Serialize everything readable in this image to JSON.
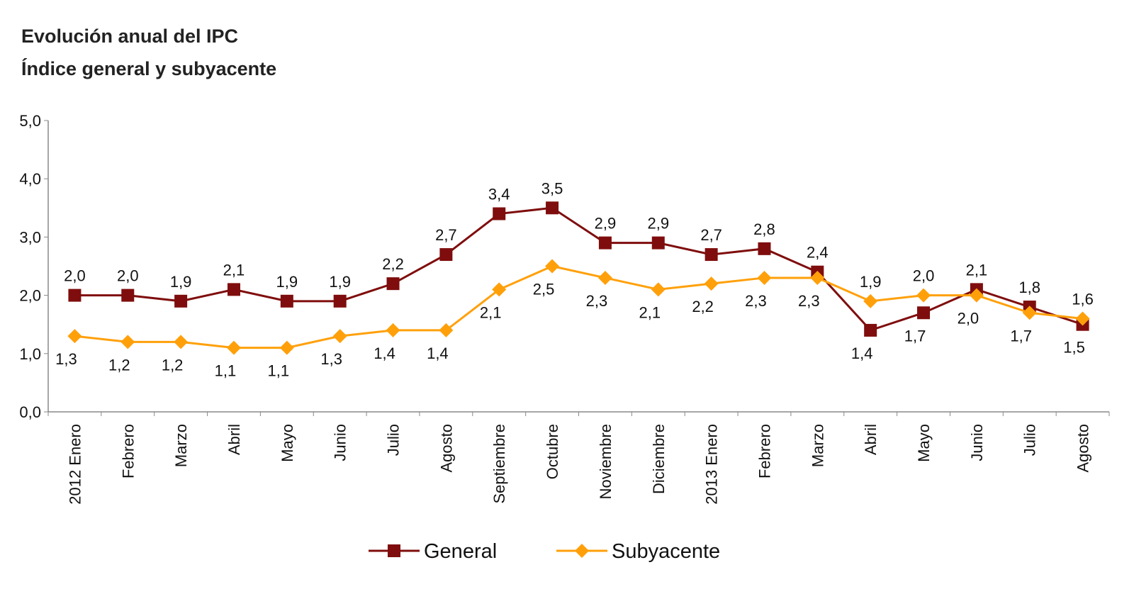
{
  "chart_data": {
    "type": "line",
    "title": "Evolución anual del IPC",
    "subtitle": "Índice general y subyacente",
    "categories": [
      "2012 Enero",
      "Febrero",
      "Marzo",
      "Abril",
      "Mayo",
      "Junio",
      "Julio",
      "Agosto",
      "Septiembre",
      "Octubre",
      "Noviembre",
      "Diciembre",
      "2013 Enero",
      "Febrero",
      "Marzo",
      "Abril",
      "Mayo",
      "Junio",
      "Julio",
      "Agosto"
    ],
    "series": [
      {
        "name": "General",
        "color": "#7F0D0D",
        "marker": "square",
        "values": [
          2.0,
          2.0,
          1.9,
          2.1,
          1.9,
          1.9,
          2.2,
          2.7,
          3.4,
          3.5,
          2.9,
          2.9,
          2.7,
          2.8,
          2.4,
          1.4,
          1.7,
          2.1,
          1.8,
          1.5
        ]
      },
      {
        "name": "Subyacente",
        "color": "#FFA00A",
        "marker": "diamond",
        "values": [
          1.3,
          1.2,
          1.2,
          1.1,
          1.1,
          1.3,
          1.4,
          1.4,
          2.1,
          2.5,
          2.3,
          2.1,
          2.2,
          2.3,
          2.3,
          1.9,
          2.0,
          2.0,
          1.7,
          1.6
        ]
      }
    ],
    "yticks": [
      "0,0",
      "1,0",
      "2,0",
      "3,0",
      "4,0",
      "5,0"
    ],
    "ylim": [
      0,
      5
    ],
    "xlabel": "",
    "ylabel": "",
    "grid": false,
    "data_labels": true,
    "legend": "bottom"
  }
}
